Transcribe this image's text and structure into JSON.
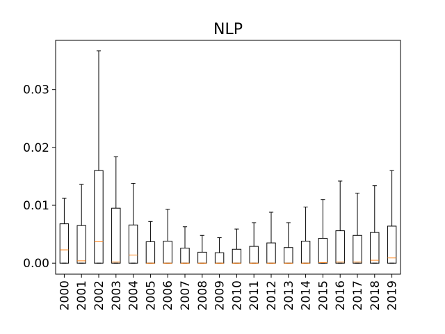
{
  "chart_data": {
    "type": "boxplot",
    "title": "NLP",
    "xlabel": "",
    "ylabel": "",
    "ylim": [
      -0.0019,
      0.0385
    ],
    "yticks": [
      0.0,
      0.01,
      0.02,
      0.03
    ],
    "ytick_labels": [
      "0.00",
      "0.01",
      "0.02",
      "0.03"
    ],
    "grid": false,
    "categories": [
      "2000",
      "2001",
      "2002",
      "2003",
      "2004",
      "2005",
      "2006",
      "2007",
      "2008",
      "2009",
      "2010",
      "2011",
      "2012",
      "2013",
      "2014",
      "2015",
      "2016",
      "2017",
      "2018",
      "2019"
    ],
    "boxes": [
      {
        "whislo": 0.0,
        "q1": 0.0,
        "med": 0.0023,
        "q3": 0.0068,
        "whishi": 0.0112
      },
      {
        "whislo": 0.0,
        "q1": 0.0,
        "med": 0.0004,
        "q3": 0.0065,
        "whishi": 0.0136
      },
      {
        "whislo": 0.0,
        "q1": 0.0,
        "med": 0.0037,
        "q3": 0.016,
        "whishi": 0.0367
      },
      {
        "whislo": 0.0,
        "q1": 0.0,
        "med": 0.0002,
        "q3": 0.0095,
        "whishi": 0.0184
      },
      {
        "whislo": 0.0,
        "q1": 0.0,
        "med": 0.0014,
        "q3": 0.0066,
        "whishi": 0.0138
      },
      {
        "whislo": 0.0,
        "q1": 0.0,
        "med": 0.0,
        "q3": 0.0037,
        "whishi": 0.0072
      },
      {
        "whislo": 0.0,
        "q1": 0.0,
        "med": 0.0,
        "q3": 0.0038,
        "whishi": 0.0093
      },
      {
        "whislo": 0.0,
        "q1": 0.0,
        "med": 0.0,
        "q3": 0.0026,
        "whishi": 0.0063
      },
      {
        "whislo": 0.0,
        "q1": 0.0,
        "med": 0.0,
        "q3": 0.0019,
        "whishi": 0.0048
      },
      {
        "whislo": 0.0,
        "q1": 0.0,
        "med": 0.0,
        "q3": 0.0018,
        "whishi": 0.0044
      },
      {
        "whislo": 0.0,
        "q1": 0.0,
        "med": 0.0,
        "q3": 0.0024,
        "whishi": 0.0059
      },
      {
        "whislo": 0.0,
        "q1": 0.0,
        "med": 0.0,
        "q3": 0.0029,
        "whishi": 0.007
      },
      {
        "whislo": 0.0,
        "q1": 0.0,
        "med": 0.0,
        "q3": 0.0035,
        "whishi": 0.0088
      },
      {
        "whislo": 0.0,
        "q1": 0.0,
        "med": 0.0,
        "q3": 0.0027,
        "whishi": 0.007
      },
      {
        "whislo": 0.0,
        "q1": 0.0,
        "med": 0.0,
        "q3": 0.0038,
        "whishi": 0.0097
      },
      {
        "whislo": 0.0,
        "q1": 0.0,
        "med": 0.0001,
        "q3": 0.0043,
        "whishi": 0.011
      },
      {
        "whislo": 0.0,
        "q1": 0.0,
        "med": 0.0002,
        "q3": 0.0056,
        "whishi": 0.0142
      },
      {
        "whislo": 0.0,
        "q1": 0.0,
        "med": 0.0002,
        "q3": 0.0048,
        "whishi": 0.0121
      },
      {
        "whislo": 0.0,
        "q1": 0.0,
        "med": 0.0005,
        "q3": 0.0053,
        "whishi": 0.0134
      },
      {
        "whislo": 0.0,
        "q1": 0.0,
        "med": 0.0009,
        "q3": 0.0064,
        "whishi": 0.016
      }
    ],
    "colors": {
      "box": "#000000",
      "median": "#ff7f0e",
      "axes": "#000000",
      "background": "#ffffff"
    }
  }
}
